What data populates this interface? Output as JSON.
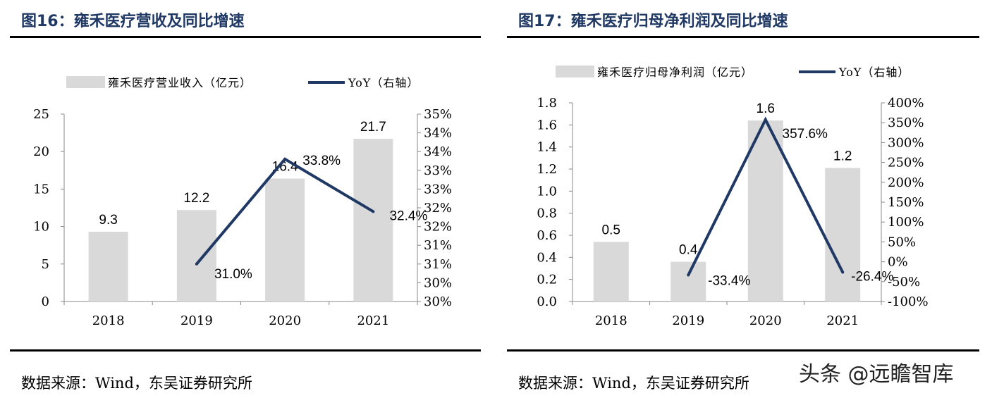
{
  "panels": [
    {
      "title": "图16：雍禾医疗营收及同比增速",
      "source": "数据来源：Wind，东吴证券研究所",
      "chart_data": {
        "type": "bar",
        "categories": [
          "2018",
          "2019",
          "2020",
          "2021"
        ],
        "series": [
          {
            "name": "雍禾医疗营业收入（亿元）",
            "type": "bar",
            "axis": "left",
            "values": [
              9.3,
              12.2,
              16.4,
              21.7
            ],
            "labels": [
              "9.3",
              "12.2",
              "16.4",
              "21.7"
            ],
            "color": "#d9d9d9"
          },
          {
            "name": "YoY（右轴）",
            "type": "line",
            "axis": "right",
            "values": [
              null,
              31.0,
              33.8,
              32.4
            ],
            "labels": [
              null,
              "31.0%",
              "33.8%",
              "32.4%"
            ],
            "color": "#1f3864"
          }
        ],
        "ylim": [
          0,
          25
        ],
        "yticks": [
          "0",
          "5",
          "10",
          "15",
          "20",
          "25"
        ],
        "y2lim": [
          30,
          35
        ],
        "y2ticks": [
          "30%",
          "30%",
          "31%",
          "31%",
          "32%",
          "32%",
          "33%",
          "33%",
          "34%",
          "34%",
          "35%"
        ],
        "legend": "top",
        "grid": false
      }
    },
    {
      "title": "图17：雍禾医疗归母净利润及同比增速",
      "source": "数据来源：Wind，东吴证券研究所",
      "chart_data": {
        "type": "bar",
        "categories": [
          "2018",
          "2019",
          "2020",
          "2021"
        ],
        "series": [
          {
            "name": "雍禾医疗归母净利润（亿元）",
            "type": "bar",
            "axis": "left",
            "values": [
              0.54,
              0.36,
              1.64,
              1.21
            ],
            "labels": [
              "0.5",
              "0.4",
              "1.6",
              "1.2"
            ],
            "color": "#d9d9d9"
          },
          {
            "name": "YoY（右轴）",
            "type": "line",
            "axis": "right",
            "values": [
              null,
              -33.4,
              357.6,
              -26.4
            ],
            "labels": [
              null,
              "-33.4%",
              "357.6%",
              "-26.4%"
            ],
            "color": "#1f3864"
          }
        ],
        "ylim": [
          0,
          1.8
        ],
        "yticks": [
          "0.0",
          "0.2",
          "0.4",
          "0.6",
          "0.8",
          "1.0",
          "1.2",
          "1.4",
          "1.6",
          "1.8"
        ],
        "y2lim": [
          -100,
          400
        ],
        "y2ticks": [
          "-100%",
          "-50%",
          "0%",
          "50%",
          "100%",
          "150%",
          "200%",
          "250%",
          "300%",
          "350%",
          "400%"
        ],
        "legend": "top",
        "grid": false
      }
    }
  ],
  "watermark": "头条 @远瞻智库"
}
